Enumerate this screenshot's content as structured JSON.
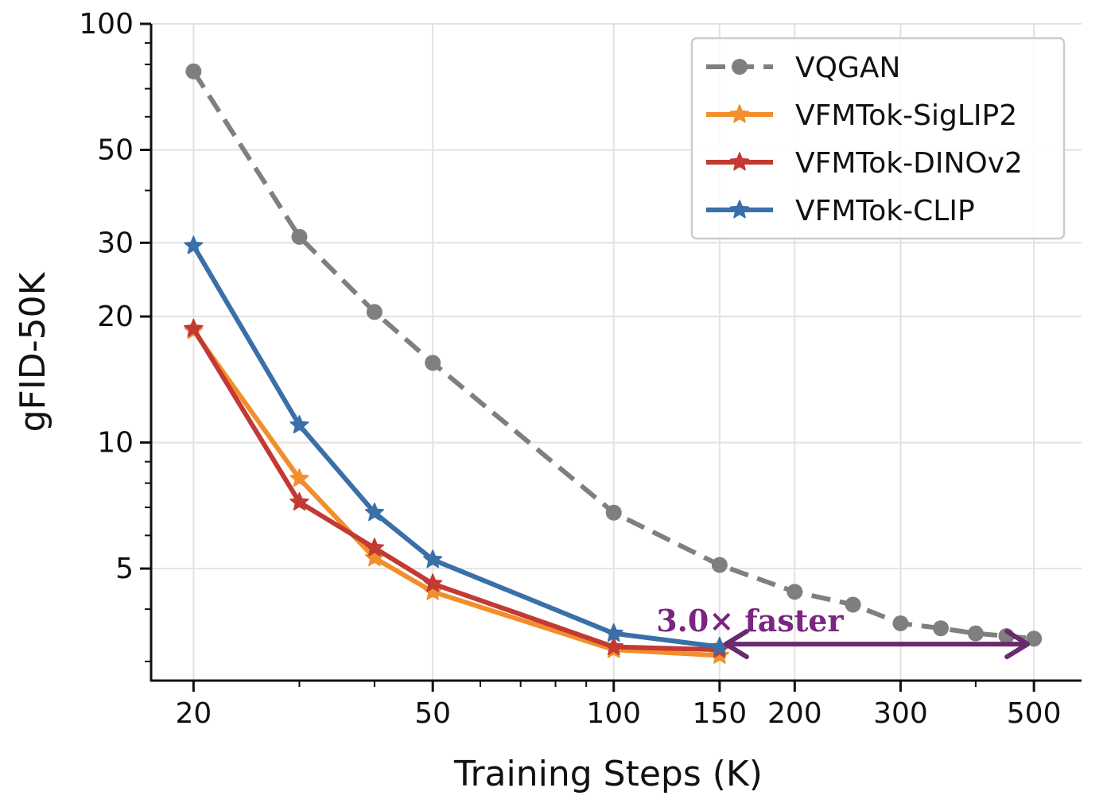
{
  "chart_data": {
    "type": "line",
    "xlabel": "Training Steps (K)",
    "ylabel": "gFID-50K",
    "xscale": "log",
    "yscale": "log",
    "xlim": [
      17,
      600
    ],
    "ylim": [
      2.7,
      100
    ],
    "xticks": [
      20,
      50,
      100,
      150,
      200,
      300,
      500
    ],
    "yticks": [
      5,
      10,
      20,
      30,
      50,
      100
    ],
    "grid": true,
    "legend_position": "top-right",
    "series": [
      {
        "name": "VQGAN",
        "color": "#7f7f7f",
        "linestyle": "dashed",
        "marker": "circle",
        "x": [
          20,
          30,
          40,
          50,
          100,
          150,
          200,
          250,
          300,
          350,
          400,
          450,
          500
        ],
        "y": [
          77,
          31,
          20.5,
          15.5,
          6.8,
          5.1,
          4.4,
          4.1,
          3.7,
          3.6,
          3.5,
          3.45,
          3.4
        ]
      },
      {
        "name": "VFMTok-SigLIP2",
        "color": "#f28e2b",
        "linestyle": "solid",
        "marker": "star",
        "x": [
          20,
          30,
          40,
          50,
          100,
          150
        ],
        "y": [
          18.5,
          8.2,
          5.3,
          4.4,
          3.2,
          3.1
        ]
      },
      {
        "name": "VFMTok-DINOv2",
        "color": "#c23a33",
        "linestyle": "solid",
        "marker": "star",
        "x": [
          20,
          30,
          40,
          50,
          100,
          150
        ],
        "y": [
          18.7,
          7.2,
          5.6,
          4.6,
          3.25,
          3.2
        ]
      },
      {
        "name": "VFMTok-CLIP",
        "color": "#3a6fa8",
        "linestyle": "solid",
        "marker": "star",
        "x": [
          20,
          30,
          40,
          50,
          100,
          150
        ],
        "y": [
          29.5,
          11.0,
          6.8,
          5.25,
          3.5,
          3.25
        ]
      }
    ],
    "annotation": {
      "text": "3.0× faster",
      "color": "#7a2582",
      "arrow_color": "#6a2a6e",
      "from_x": 150,
      "to_x": 500,
      "y": 3.3
    }
  }
}
